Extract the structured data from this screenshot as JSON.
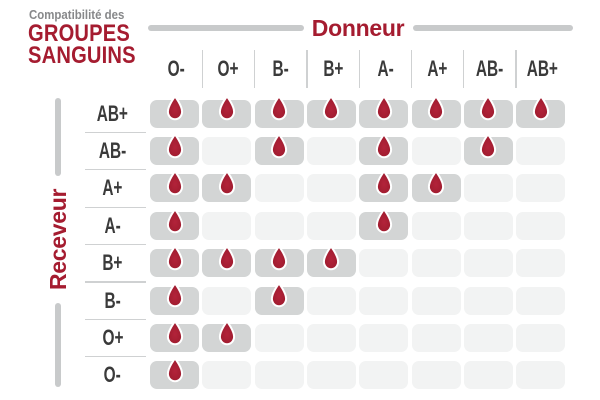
{
  "title": {
    "subtitle": "Compatibilité des",
    "line1": "GROUPES",
    "line2": "SANGUINS"
  },
  "donor_axis": {
    "label": "Donneur"
  },
  "receiver_axis": {
    "label": "Receveur"
  },
  "columns": [
    "O-",
    "O+",
    "B-",
    "B+",
    "A-",
    "A+",
    "AB-",
    "AB+"
  ],
  "rows": [
    "AB+",
    "AB-",
    "A+",
    "A-",
    "B+",
    "B-",
    "O+",
    "O-"
  ],
  "matrix": [
    [
      1,
      1,
      1,
      1,
      1,
      1,
      1,
      1
    ],
    [
      1,
      0,
      1,
      0,
      1,
      0,
      1,
      0
    ],
    [
      1,
      1,
      0,
      0,
      1,
      1,
      0,
      0
    ],
    [
      1,
      0,
      0,
      0,
      1,
      0,
      0,
      0
    ],
    [
      1,
      1,
      1,
      1,
      0,
      0,
      0,
      0
    ],
    [
      1,
      0,
      1,
      0,
      0,
      0,
      0,
      0
    ],
    [
      1,
      1,
      0,
      0,
      0,
      0,
      0,
      0
    ],
    [
      1,
      0,
      0,
      0,
      0,
      0,
      0,
      0
    ]
  ],
  "icons": {
    "compatible": "blood-drop-icon"
  },
  "colors": {
    "accent_red": "#A51C30",
    "drop_red_outer": "#9A1A2C",
    "drop_red_center": "#B3233A",
    "compatible_cell": "#D3D5D5",
    "incompatible_cell": "#F2F3F3",
    "axis_line_gray": "#C8CACB",
    "separator_gray": "#CFD1D2",
    "header_text": "#3A3A3A",
    "subtitle_gray": "#87888A",
    "background": "#FFFFFF"
  },
  "chart_data": {
    "type": "heatmap",
    "title": "Compatibilité des GROUPES SANGUINS",
    "x_axis_label": "Donneur",
    "y_axis_label": "Receveur",
    "columns": [
      "O-",
      "O+",
      "B-",
      "B+",
      "A-",
      "A+",
      "AB-",
      "AB+"
    ],
    "rows": [
      "AB+",
      "AB-",
      "A+",
      "A-",
      "B+",
      "B-",
      "O+",
      "O-"
    ],
    "values": [
      [
        1,
        1,
        1,
        1,
        1,
        1,
        1,
        1
      ],
      [
        1,
        0,
        1,
        0,
        1,
        0,
        1,
        0
      ],
      [
        1,
        1,
        0,
        0,
        1,
        1,
        0,
        0
      ],
      [
        1,
        0,
        0,
        0,
        1,
        0,
        0,
        0
      ],
      [
        1,
        1,
        1,
        1,
        0,
        0,
        0,
        0
      ],
      [
        1,
        0,
        1,
        0,
        0,
        0,
        0,
        0
      ],
      [
        1,
        1,
        0,
        0,
        0,
        0,
        0,
        0
      ],
      [
        1,
        0,
        0,
        0,
        0,
        0,
        0,
        0
      ]
    ],
    "value_meaning": "1 = compatible (blood drop shown in gray cell), 0 = incompatible (empty light cell)",
    "legend_position": "none",
    "grid": false
  }
}
